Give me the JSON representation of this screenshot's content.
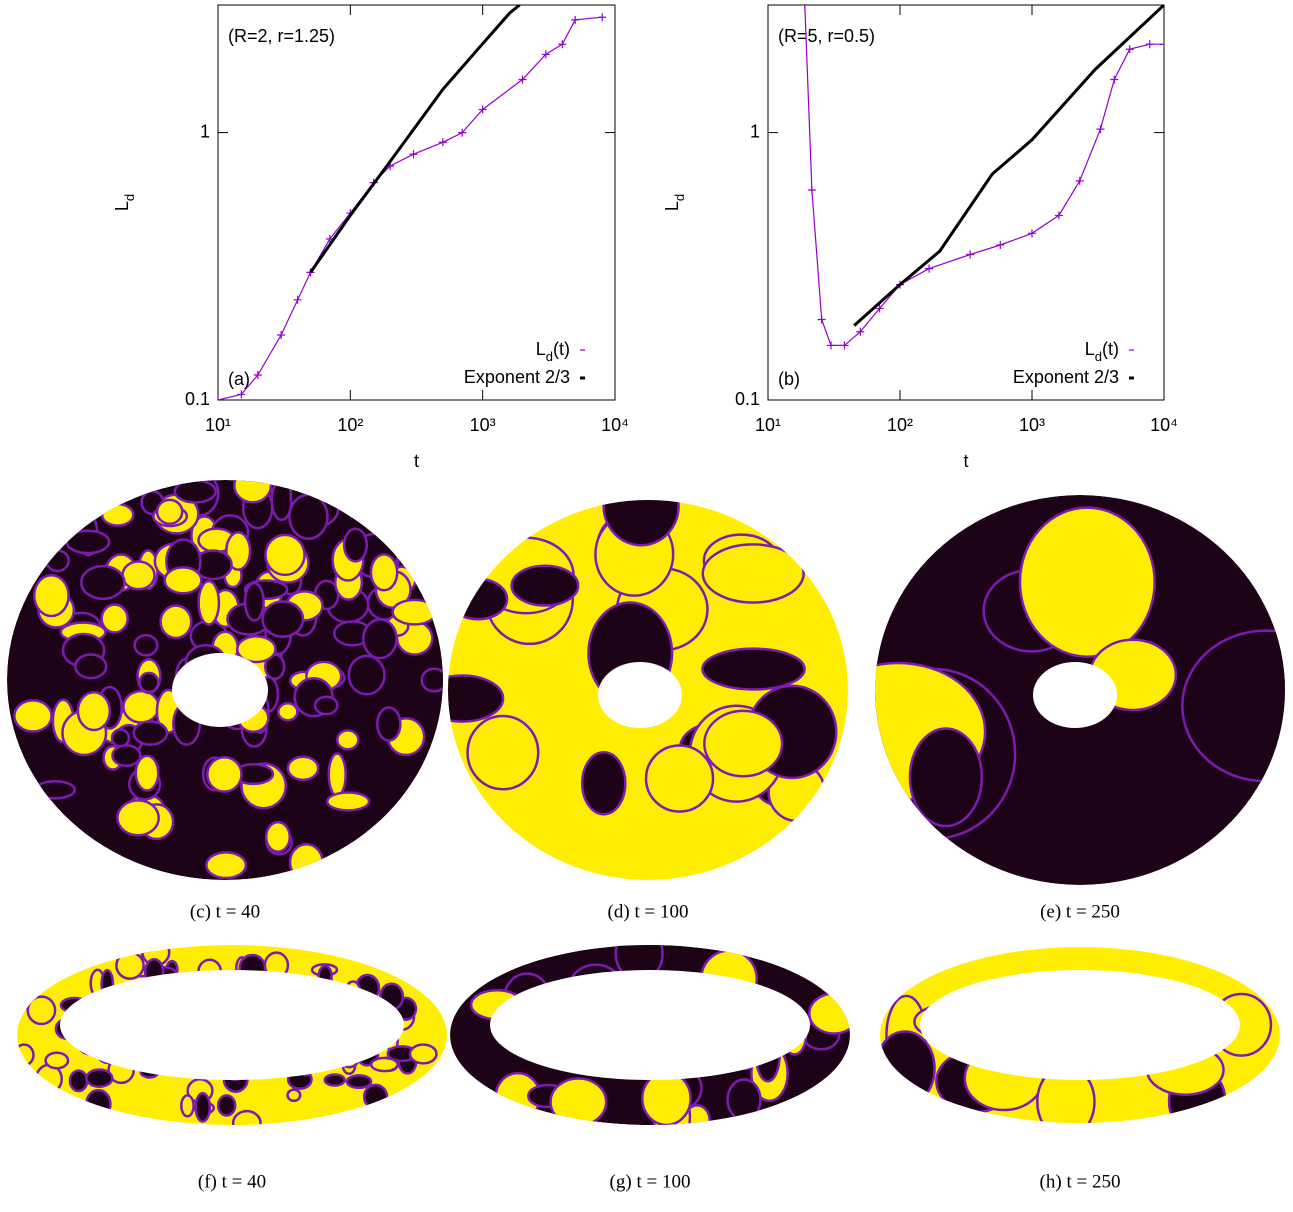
{
  "chart_data": [
    {
      "type": "line",
      "annotation": "(R=2, r=1.25)",
      "panel_label": "(a)",
      "xlabel": "t",
      "ylabel": "L_d",
      "log_x": true,
      "log_y": true,
      "legend": "bottom-right",
      "xlim": [
        10,
        10000
      ],
      "xticks": [
        {
          "value": 10,
          "label": "10¹"
        },
        {
          "value": 100,
          "label": "10²"
        },
        {
          "value": 1000,
          "label": "10³"
        },
        {
          "value": 10000,
          "label": "10⁴"
        }
      ],
      "ylim": [
        0.1,
        3
      ],
      "yticks": [
        0.1,
        1
      ],
      "series": [
        {
          "name": "L_d(t)",
          "color": "#9400d3",
          "markers": true,
          "x": [
            10,
            15,
            20,
            30,
            40,
            50,
            70,
            100,
            150,
            200,
            300,
            500,
            700,
            1000,
            2000,
            3000,
            4000,
            5000,
            8000
          ],
          "values": [
            0.1,
            0.105,
            0.124,
            0.175,
            0.237,
            0.3,
            0.4,
            0.5,
            0.65,
            0.75,
            0.83,
            0.92,
            1.0,
            1.22,
            1.58,
            1.96,
            2.14,
            2.64,
            2.7
          ]
        },
        {
          "name": "Exponent 2/3",
          "color": "#000000",
          "markers": false,
          "x": [
            50,
            100,
            200,
            500,
            1000,
            1600,
            1900
          ],
          "values": [
            0.3,
            0.49,
            0.78,
            1.45,
            2.15,
            2.8,
            3.0
          ]
        }
      ]
    },
    {
      "type": "line",
      "annotation": "(R=5, r=0.5)",
      "panel_label": "(b)",
      "xlabel": "t",
      "ylabel": "L_d",
      "log_x": true,
      "log_y": true,
      "legend": "bottom-right",
      "xlim": [
        10,
        10000
      ],
      "xticks": [
        {
          "value": 10,
          "label": "10¹"
        },
        {
          "value": 100,
          "label": "10²"
        },
        {
          "value": 1000,
          "label": "10³"
        },
        {
          "value": 10000,
          "label": "10⁴"
        }
      ],
      "ylim": [
        0.1,
        3
      ],
      "yticks": [
        0.1,
        1
      ],
      "series": [
        {
          "name": "L_d(t)",
          "color": "#9400d3",
          "markers": true,
          "x": [
            19,
            21.5,
            25.5,
            30,
            38,
            50,
            70,
            100,
            166,
            340,
            575,
            1000,
            1600,
            2300,
            3300,
            4200,
            5500,
            7800,
            10000
          ],
          "values": [
            3.0,
            0.61,
            0.2,
            0.16,
            0.16,
            0.18,
            0.22,
            0.27,
            0.31,
            0.35,
            0.38,
            0.42,
            0.49,
            0.66,
            1.03,
            1.58,
            2.05,
            2.14,
            2.14
          ]
        },
        {
          "name": "Exponent 2/3",
          "color": "#000000",
          "markers": false,
          "x": [
            45,
            100,
            200,
            500,
            1000,
            3000,
            10000
          ],
          "values": [
            0.19,
            0.27,
            0.36,
            0.7,
            0.94,
            1.72,
            3.0
          ]
        }
      ]
    }
  ],
  "captions": [
    "(c) t = 40",
    "(d) t = 100",
    "(e) t = 250",
    "(f) t = 40",
    "(g) t = 100",
    "(h) t = 250"
  ]
}
